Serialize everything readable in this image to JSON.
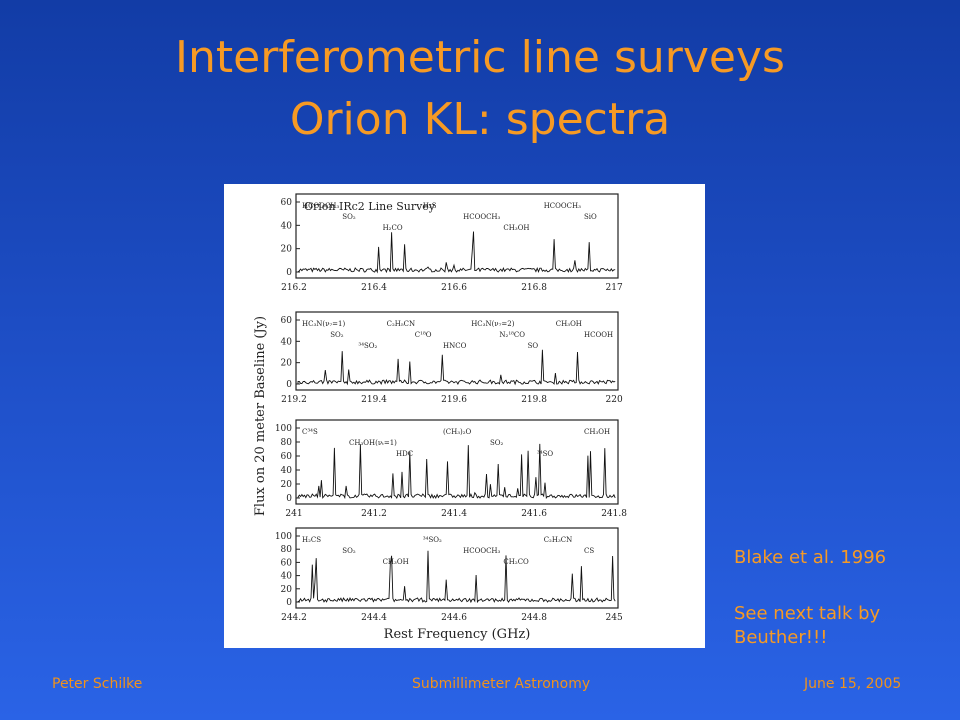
{
  "slide": {
    "title_line1": "Interferometric line surveys",
    "title_line2": "Orion KL: spectra",
    "citation": "Blake et al. 1996",
    "note": "See next talk by Beuther!!!"
  },
  "footer": {
    "author": "Peter Schilke",
    "event": "Submillimeter Astronomy",
    "date": "June 15, 2005"
  },
  "figure": {
    "survey_title": "Orion IRc2 Line Survey",
    "ylabel": "Flux on 20 meter Baseline (Jy)",
    "xlabel": "Rest Frequency (GHz)",
    "panels": [
      {
        "yticks": [
          "60",
          "40",
          "20",
          "0"
        ],
        "xticks": [
          "216.2",
          "216.4",
          "216.6",
          "216.8",
          "217"
        ],
        "lines": [
          "HCOOCH₃",
          "SO₂",
          "H₂CO",
          "H₂S",
          "HCOOCH₃",
          "CH₃OH",
          "HCOOCH₃",
          "SiO"
        ]
      },
      {
        "yticks": [
          "60",
          "40",
          "20",
          "0"
        ],
        "xticks": [
          "219.2",
          "219.4",
          "219.6",
          "219.8",
          "220"
        ],
        "lines": [
          "HC₃N(ν₇=1)",
          "SO₂",
          "³⁴SO₂",
          "C₂H₅CN",
          "C¹⁸O",
          "HNCO",
          "HC₃N(ν₇=2)",
          "N₂¹⁸CO",
          "SO",
          "CH₃OH",
          "HCOOH"
        ]
      },
      {
        "yticks": [
          "100",
          "80",
          "60",
          "40",
          "20",
          "0"
        ],
        "xticks": [
          "241",
          "241.2",
          "241.4",
          "241.6",
          "241.8"
        ],
        "lines": [
          "C³⁴S",
          "CH₃OH(νₜ=1)",
          "HDC",
          "(CH₃)₂O",
          "SO₂",
          "³⁴SO",
          "CH₃OH"
        ]
      },
      {
        "yticks": [
          "100",
          "80",
          "60",
          "40",
          "20",
          "0"
        ],
        "xticks": [
          "244.2",
          "244.4",
          "244.6",
          "244.8",
          "245"
        ],
        "lines": [
          "H₂CS",
          "SO₂",
          "CH₃OH",
          "³⁴SO₂",
          "HCOOCH₃",
          "CH₂CO",
          "C₂H₃CN",
          "CS"
        ]
      }
    ]
  }
}
